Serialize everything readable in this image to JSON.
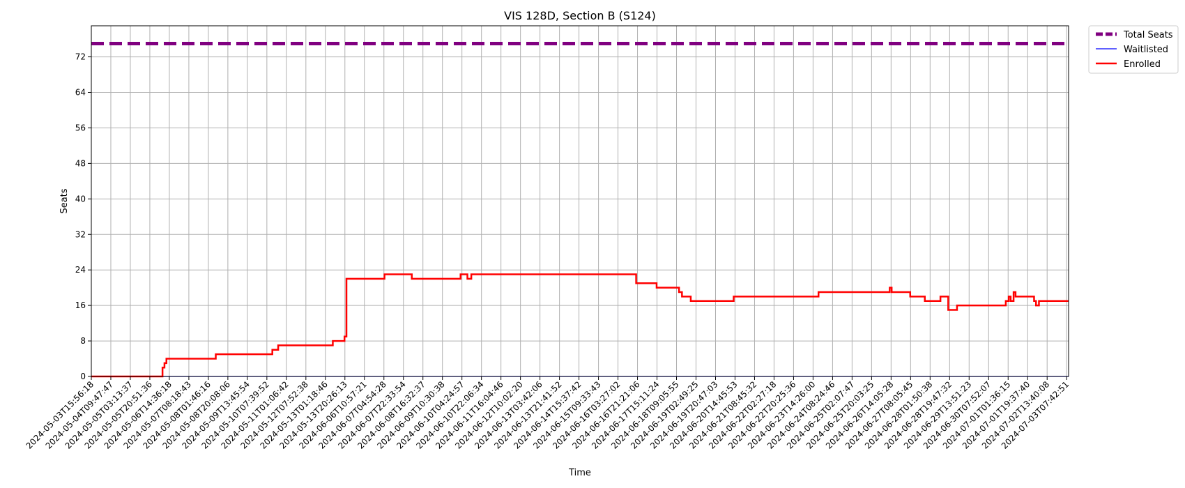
{
  "chart_data": {
    "type": "line",
    "title": "VIS 128D, Section B (S124)",
    "xlabel": "Time",
    "ylabel": "Seats",
    "ylim": [
      0,
      79
    ],
    "y_ticks": [
      0,
      8,
      16,
      24,
      32,
      40,
      48,
      56,
      64,
      72
    ],
    "grid": true,
    "legend_position": "outside-top-right",
    "x_ticks": [
      "2024-05-03T15:56:18",
      "2024-05-04T09:47:47",
      "2024-05-05T03:13:37",
      "2024-05-05T20:51:36",
      "2024-05-06T14:36:18",
      "2024-05-07T08:18:43",
      "2024-05-08T01:46:16",
      "2024-05-08T20:08:06",
      "2024-05-09T13:45:54",
      "2024-05-10T07:39:52",
      "2024-05-11T01:06:42",
      "2024-05-12T07:52:38",
      "2024-05-13T01:18:46",
      "2024-05-13T20:26:13",
      "2024-06-06T10:57:21",
      "2024-06-07T04:54:28",
      "2024-06-07T22:33:54",
      "2024-06-08T16:32:37",
      "2024-06-09T10:30:38",
      "2024-06-10T04:24:57",
      "2024-06-10T22:06:34",
      "2024-06-11T16:04:46",
      "2024-06-12T10:02:20",
      "2024-06-13T03:42:06",
      "2024-06-13T21:41:52",
      "2024-06-14T15:37:42",
      "2024-06-15T09:33:43",
      "2024-06-16T03:27:02",
      "2024-06-16T21:21:06",
      "2024-06-17T15:11:24",
      "2024-06-18T09:05:55",
      "2024-06-19T02:49:25",
      "2024-06-19T20:47:03",
      "2024-06-20T14:45:53",
      "2024-06-21T08:45:32",
      "2024-06-22T02:27:18",
      "2024-06-22T20:25:36",
      "2024-06-23T14:26:00",
      "2024-06-24T08:24:46",
      "2024-06-25T02:07:47",
      "2024-06-25T20:03:25",
      "2024-06-26T14:05:28",
      "2024-06-27T08:05:45",
      "2024-06-28T01:50:38",
      "2024-06-28T19:47:32",
      "2024-06-29T13:51:23",
      "2024-06-30T07:52:07",
      "2024-07-01T01:36:15",
      "2024-07-01T19:37:40",
      "2024-07-02T13:40:08",
      "2024-07-03T07:42:51"
    ],
    "x_range": [
      0,
      50.1
    ],
    "series": [
      {
        "name": "Total Seats",
        "color": "#800080",
        "style": "dashed",
        "x": [
          0,
          50.1
        ],
        "y": [
          75,
          75
        ]
      },
      {
        "name": "Waitlisted",
        "color": "#0000ff",
        "style": "solid",
        "x": [
          0,
          50.1
        ],
        "y": [
          0,
          0
        ]
      },
      {
        "name": "Enrolled",
        "color": "#ff0000",
        "style": "step",
        "x": [
          0,
          3.65,
          3.75,
          3.85,
          3.98,
          6.38,
          9.28,
          9.58,
          9.88,
          12.38,
          12.98,
          13.08,
          14.23,
          15.03,
          15.83,
          16.43,
          17.03,
          18.63,
          18.93,
          19.08,
          19.28,
          19.48,
          27.93,
          28.98,
          30.13,
          30.28,
          30.73,
          32.93,
          37.28,
          40.83,
          40.93,
          41.03,
          41.98,
          42.73,
          42.98,
          43.53,
          43.93,
          44.38,
          46.78,
          46.88,
          47.03,
          47.13,
          47.28,
          47.38,
          47.53,
          48.33,
          48.43,
          48.58
        ],
        "y": [
          0,
          2,
          3,
          4,
          4,
          5,
          6,
          7,
          7,
          8,
          9,
          22,
          22,
          23,
          23,
          22,
          22,
          22,
          23,
          23,
          22,
          23,
          21,
          20,
          19,
          18,
          17,
          18,
          19,
          19,
          20,
          19,
          18,
          17,
          17,
          18,
          15,
          16,
          16,
          17,
          18,
          17,
          19,
          18,
          18,
          17,
          16,
          17
        ]
      }
    ]
  }
}
